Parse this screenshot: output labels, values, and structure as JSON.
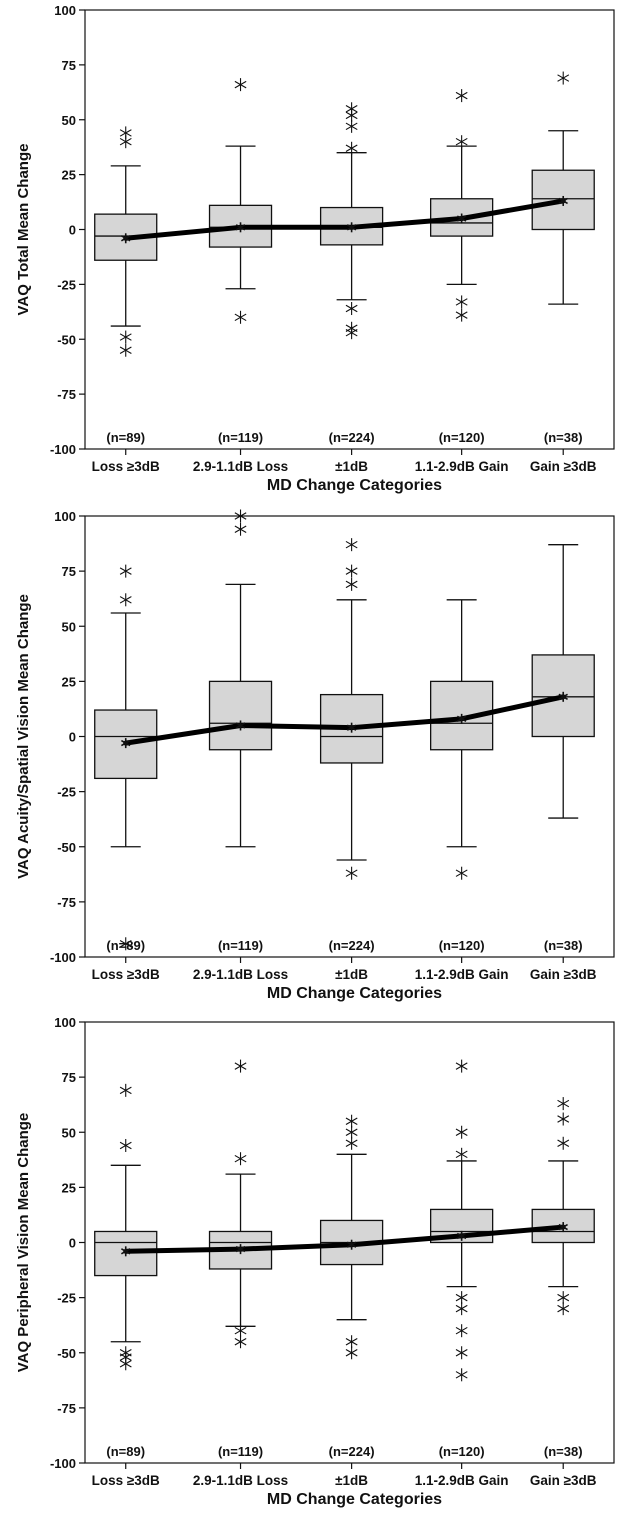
{
  "colors": {
    "box_fill": "#d6d6d6",
    "stroke": "#111111",
    "mean_line": "#000000",
    "background": "#ffffff"
  },
  "chart_data": [
    {
      "type": "boxplot",
      "xlabel": "MD Change Categories",
      "ylabel": "VAQ Total Mean Change",
      "ylim": [
        -100,
        100
      ],
      "yticks": [
        -100,
        -75,
        -50,
        -25,
        0,
        25,
        50,
        75,
        100
      ],
      "categories": [
        "Loss ≥3dB",
        "2.9-1.1dB Loss",
        "±1dB",
        "1.1-2.9dB Gain",
        "Gain ≥3dB"
      ],
      "n_labels": [
        "(n=89)",
        "(n=119)",
        "(n=224)",
        "(n=120)",
        "(n=38)"
      ],
      "boxes": [
        {
          "whisker_low": -44,
          "q1": -14,
          "median": -3,
          "q3": 7,
          "whisker_high": 29,
          "mean": -4,
          "outliers": [
            44,
            40,
            -49,
            -55
          ]
        },
        {
          "whisker_low": -27,
          "q1": -8,
          "median": 1,
          "q3": 11,
          "whisker_high": 38,
          "mean": 1,
          "outliers": [
            66,
            -40
          ]
        },
        {
          "whisker_low": -32,
          "q1": -7,
          "median": 1,
          "q3": 10,
          "whisker_high": 35,
          "mean": 1,
          "outliers": [
            55,
            52,
            47,
            37,
            -36,
            -45,
            -47
          ]
        },
        {
          "whisker_low": -25,
          "q1": -3,
          "median": 3,
          "q3": 14,
          "whisker_high": 38,
          "mean": 5,
          "outliers": [
            61,
            40,
            -33,
            -39
          ]
        },
        {
          "whisker_low": -34,
          "q1": 0,
          "median": 14,
          "q3": 27,
          "whisker_high": 45,
          "mean": 13,
          "outliers": [
            69
          ]
        }
      ]
    },
    {
      "type": "boxplot",
      "xlabel": "MD Change Categories",
      "ylabel": "VAQ Acuity/Spatial Vision Mean Change",
      "ylim": [
        -100,
        100
      ],
      "yticks": [
        -100,
        -75,
        -50,
        -25,
        0,
        25,
        50,
        75,
        100
      ],
      "categories": [
        "Loss ≥3dB",
        "2.9-1.1dB Loss",
        "±1dB",
        "1.1-2.9dB Gain",
        "Gain ≥3dB"
      ],
      "n_labels": [
        "(n=89)",
        "(n=119)",
        "(n=224)",
        "(n=120)",
        "(n=38)"
      ],
      "boxes": [
        {
          "whisker_low": -50,
          "q1": -19,
          "median": 0,
          "q3": 12,
          "whisker_high": 56,
          "mean": -3,
          "outliers": [
            75,
            62,
            -94
          ]
        },
        {
          "whisker_low": -50,
          "q1": -6,
          "median": 6,
          "q3": 25,
          "whisker_high": 69,
          "mean": 5,
          "outliers": [
            100,
            94
          ]
        },
        {
          "whisker_low": -56,
          "q1": -12,
          "median": 0,
          "q3": 19,
          "whisker_high": 62,
          "mean": 4,
          "outliers": [
            87,
            75,
            69,
            -62
          ]
        },
        {
          "whisker_low": -50,
          "q1": -6,
          "median": 6,
          "q3": 25,
          "whisker_high": 62,
          "mean": 8,
          "outliers": [
            -62
          ]
        },
        {
          "whisker_low": -37,
          "q1": 0,
          "median": 18,
          "q3": 37,
          "whisker_high": 87,
          "mean": 18,
          "outliers": []
        }
      ]
    },
    {
      "type": "boxplot",
      "xlabel": "MD Change Categories",
      "ylabel": "VAQ Peripheral Vision Mean Change",
      "ylim": [
        -100,
        100
      ],
      "yticks": [
        -100,
        -75,
        -50,
        -25,
        0,
        25,
        50,
        75,
        100
      ],
      "categories": [
        "Loss ≥3dB",
        "2.9-1.1dB Loss",
        "±1dB",
        "1.1-2.9dB Gain",
        "Gain ≥3dB"
      ],
      "n_labels": [
        "(n=89)",
        "(n=119)",
        "(n=224)",
        "(n=120)",
        "(n=38)"
      ],
      "boxes": [
        {
          "whisker_low": -45,
          "q1": -15,
          "median": 0,
          "q3": 5,
          "whisker_high": 35,
          "mean": -4,
          "outliers": [
            69,
            44,
            -50,
            -52,
            -55
          ]
        },
        {
          "whisker_low": -38,
          "q1": -12,
          "median": 0,
          "q3": 5,
          "whisker_high": 31,
          "mean": -3,
          "outliers": [
            80,
            38,
            -40,
            -45
          ]
        },
        {
          "whisker_low": -35,
          "q1": -10,
          "median": 0,
          "q3": 10,
          "whisker_high": 40,
          "mean": -1,
          "outliers": [
            55,
            50,
            45,
            -45,
            -50
          ]
        },
        {
          "whisker_low": -20,
          "q1": 0,
          "median": 5,
          "q3": 15,
          "whisker_high": 37,
          "mean": 3,
          "outliers": [
            80,
            50,
            40,
            -25,
            -30,
            -40,
            -50,
            -60
          ]
        },
        {
          "whisker_low": -20,
          "q1": 0,
          "median": 5,
          "q3": 15,
          "whisker_high": 37,
          "mean": 7,
          "outliers": [
            63,
            56,
            45,
            -25,
            -30
          ]
        }
      ]
    }
  ]
}
